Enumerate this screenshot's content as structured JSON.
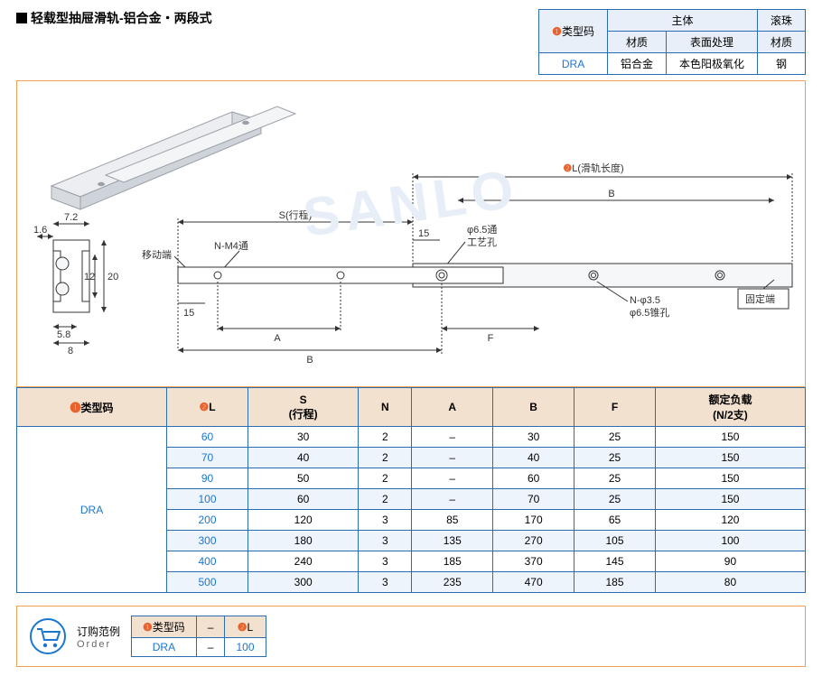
{
  "title": "轻载型抽屉滑轨-铝合金・两段式",
  "mat_table": {
    "type_code_label": "类型码",
    "main_body": "主体",
    "ball": "滚珠",
    "material": "材质",
    "surface": "表面处理",
    "row": {
      "type": "DRA",
      "mat": "铝合金",
      "surf": "本色阳极氧化",
      "ball_mat": "钢"
    }
  },
  "diagram": {
    "dims_left": {
      "w1": "7.2",
      "w2": "1.6",
      "h_outer": "20",
      "h_inner": "12",
      "b1": "5.8",
      "b2": "8"
    },
    "labels": {
      "moving_end": "移动端",
      "fixed_end": "固定端",
      "nm4": "N-M4通",
      "stroke": "S(行程)",
      "phi65": "φ6.5通",
      "process_hole": "工艺孔",
      "nphi35": "N-φ3.5",
      "phi65cone": "φ6.5锥孔",
      "rail_len": "L(滑轨长度)",
      "d15_1": "15",
      "d15_2": "15",
      "A": "A",
      "B": "B",
      "B2": "B",
      "F": "F"
    },
    "colors": {
      "line": "#333333",
      "fill": "#f6f7f9",
      "blue": "#1b76d0",
      "accent": "#e8622e"
    }
  },
  "spec_table": {
    "headers": {
      "type_code": "类型码",
      "L": "L",
      "S": "S\n(行程)",
      "N": "N",
      "A": "A",
      "B": "B",
      "F": "F",
      "load": "额定负载\n(N/2支)"
    },
    "type_code": "DRA",
    "rows": [
      {
        "L": "60",
        "S": "30",
        "N": "2",
        "A": "–",
        "B": "30",
        "F": "25",
        "load": "150"
      },
      {
        "L": "70",
        "S": "40",
        "N": "2",
        "A": "–",
        "B": "40",
        "F": "25",
        "load": "150"
      },
      {
        "L": "90",
        "S": "50",
        "N": "2",
        "A": "–",
        "B": "60",
        "F": "25",
        "load": "150"
      },
      {
        "L": "100",
        "S": "60",
        "N": "2",
        "A": "–",
        "B": "70",
        "F": "25",
        "load": "150"
      },
      {
        "L": "200",
        "S": "120",
        "N": "3",
        "A": "85",
        "B": "170",
        "F": "65",
        "load": "120"
      },
      {
        "L": "300",
        "S": "180",
        "N": "3",
        "A": "135",
        "B": "270",
        "F": "105",
        "load": "100"
      },
      {
        "L": "400",
        "S": "240",
        "N": "3",
        "A": "185",
        "B": "370",
        "F": "145",
        "load": "90"
      },
      {
        "L": "500",
        "S": "300",
        "N": "3",
        "A": "235",
        "B": "470",
        "F": "185",
        "load": "80"
      }
    ]
  },
  "order": {
    "label_cn": "订购范例",
    "label_en": "Order",
    "type_code_hdr": "类型码",
    "L_hdr": "L",
    "example": {
      "type": "DRA",
      "L": "100"
    }
  },
  "circled": {
    "one": "❶",
    "two": "❷"
  }
}
